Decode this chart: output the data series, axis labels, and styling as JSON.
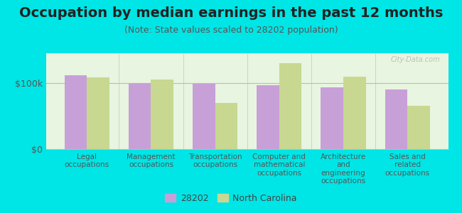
{
  "title": "Occupation by median earnings in the past 12 months",
  "subtitle": "(Note: State values scaled to 28202 population)",
  "background_color": "#00e5e5",
  "plot_bg_color_top": "#e8f5e0",
  "plot_bg_color_bottom": "#f5fff5",
  "categories": [
    "Legal\noccupations",
    "Management\noccupations",
    "Transportation\noccupations",
    "Computer and\nmathematical\noccupations",
    "Architecture\nand\nengineering\noccupations",
    "Sales and\nrelated\noccupations"
  ],
  "values_28202": [
    112000,
    100000,
    99000,
    97000,
    93000,
    90000
  ],
  "values_nc": [
    108000,
    105000,
    70000,
    130000,
    110000,
    65000
  ],
  "color_28202": "#c8a0d8",
  "color_nc": "#c8d890",
  "yticks": [
    0,
    100000
  ],
  "ytick_labels": [
    "$0",
    "$100k"
  ],
  "ylabel_fontsize": 9,
  "title_fontsize": 14,
  "subtitle_fontsize": 9,
  "legend_label_28202": "28202",
  "legend_label_nc": "North Carolina",
  "bar_width": 0.35,
  "watermark": "City-Data.com"
}
